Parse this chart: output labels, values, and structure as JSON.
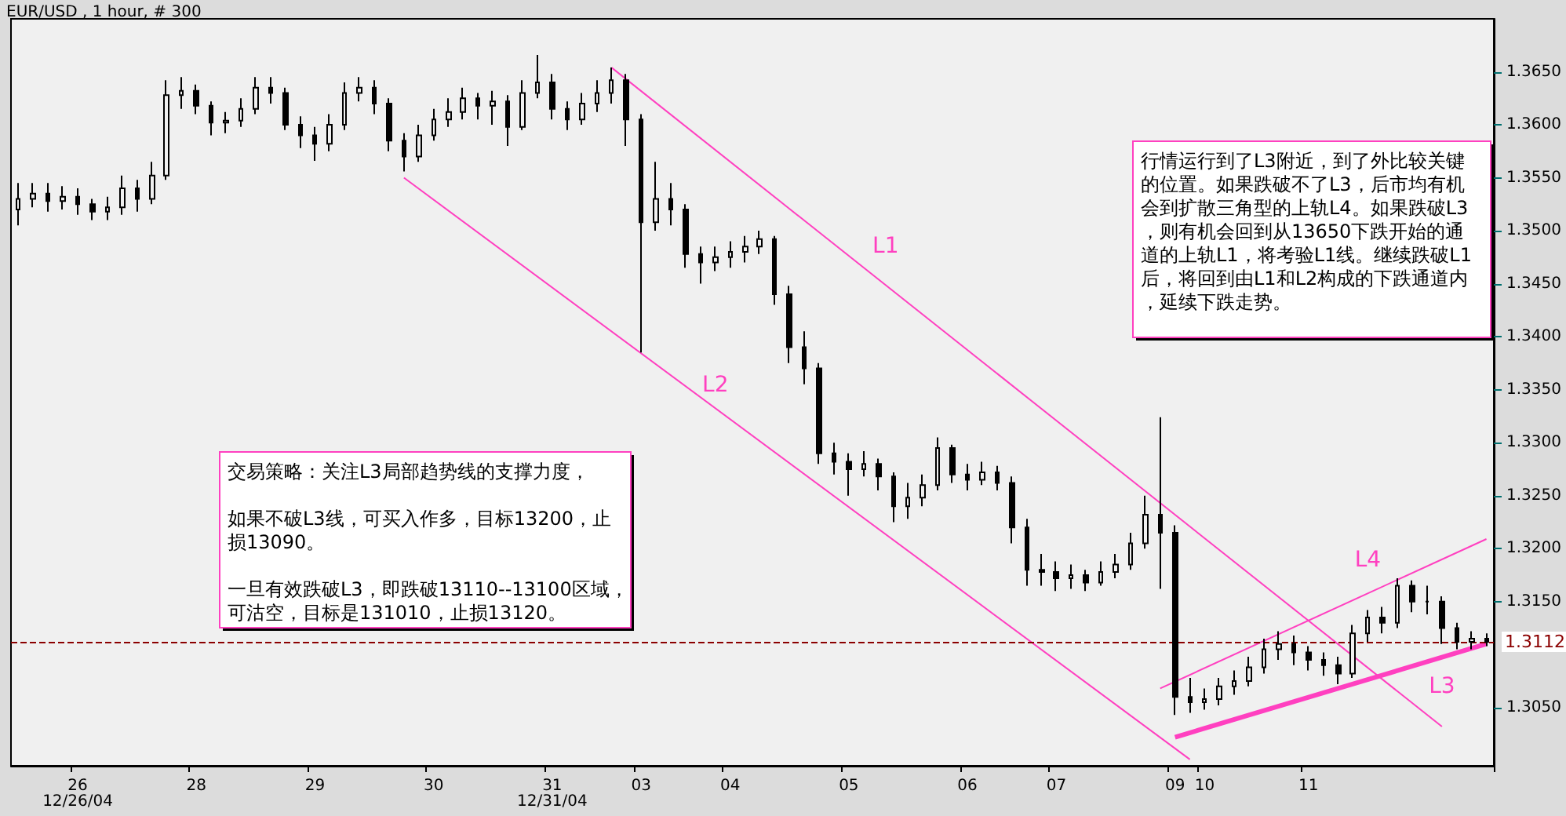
{
  "chart_data": {
    "type": "candlestick",
    "title": "EUR/USD , 1 hour, # 300",
    "categories": [
      null,
      null,
      null,
      null,
      "26\n12/26/04",
      null,
      null,
      null,
      null,
      null,
      null,
      null,
      "28",
      null,
      null,
      null,
      null,
      null,
      null,
      null,
      "29",
      null,
      null,
      null,
      null,
      null,
      null,
      null,
      "30",
      null,
      null,
      null,
      null,
      null,
      null,
      null,
      "31\n12/31/04",
      null,
      null,
      null,
      null,
      null,
      "03",
      null,
      null,
      null,
      null,
      null,
      "04",
      null,
      null,
      null,
      null,
      null,
      null,
      null,
      "05",
      null,
      null,
      null,
      null,
      null,
      null,
      null,
      "06",
      null,
      null,
      null,
      null,
      null,
      "07",
      null,
      null,
      null,
      null,
      null,
      null,
      null,
      "09",
      null,
      "10",
      null,
      null,
      null,
      null,
      null,
      null,
      "11",
      null,
      null,
      null,
      null,
      null,
      null,
      null,
      null,
      null,
      null,
      null,
      null
    ],
    "color": "#000000",
    "ohlc": [
      [
        1.352,
        1.3545,
        1.3505,
        1.353
      ],
      [
        1.353,
        1.3545,
        1.3522,
        1.3535
      ],
      [
        1.3535,
        1.3545,
        1.3518,
        1.3528
      ],
      [
        1.3528,
        1.3542,
        1.352,
        1.3532
      ],
      [
        1.3532,
        1.354,
        1.3515,
        1.3525
      ],
      [
        1.3525,
        1.353,
        1.351,
        1.3518
      ],
      [
        1.3518,
        1.3532,
        1.351,
        1.3522
      ],
      [
        1.3522,
        1.3552,
        1.3515,
        1.354
      ],
      [
        1.354,
        1.3548,
        1.3518,
        1.353
      ],
      [
        1.353,
        1.3565,
        1.3525,
        1.3552
      ],
      [
        1.3552,
        1.3642,
        1.3548,
        1.3628
      ],
      [
        1.3628,
        1.3645,
        1.3615,
        1.3632
      ],
      [
        1.3632,
        1.3638,
        1.361,
        1.3618
      ],
      [
        1.3618,
        1.3622,
        1.359,
        1.3602
      ],
      [
        1.3602,
        1.3612,
        1.3592,
        1.3604
      ],
      [
        1.3604,
        1.3625,
        1.3598,
        1.3615
      ],
      [
        1.3615,
        1.3645,
        1.361,
        1.3635
      ],
      [
        1.3635,
        1.3645,
        1.362,
        1.363
      ],
      [
        1.363,
        1.3635,
        1.3595,
        1.36
      ],
      [
        1.36,
        1.3608,
        1.3578,
        1.359
      ],
      [
        1.359,
        1.3598,
        1.3566,
        1.3582
      ],
      [
        1.3582,
        1.361,
        1.3575,
        1.36
      ],
      [
        1.36,
        1.364,
        1.3595,
        1.363
      ],
      [
        1.363,
        1.3645,
        1.3622,
        1.3635
      ],
      [
        1.3635,
        1.3642,
        1.361,
        1.362
      ],
      [
        1.362,
        1.3625,
        1.3575,
        1.3585
      ],
      [
        1.3585,
        1.3592,
        1.3556,
        1.357
      ],
      [
        1.357,
        1.36,
        1.3565,
        1.359
      ],
      [
        1.359,
        1.3615,
        1.3585,
        1.3605
      ],
      [
        1.3605,
        1.3625,
        1.3598,
        1.3612
      ],
      [
        1.3612,
        1.3635,
        1.3605,
        1.3625
      ],
      [
        1.3625,
        1.363,
        1.3605,
        1.3618
      ],
      [
        1.3618,
        1.3632,
        1.36,
        1.3622
      ],
      [
        1.3622,
        1.3628,
        1.358,
        1.3598
      ],
      [
        1.3598,
        1.3642,
        1.3595,
        1.363
      ],
      [
        1.363,
        1.3666,
        1.3625,
        1.364
      ],
      [
        1.364,
        1.3648,
        1.3605,
        1.3615
      ],
      [
        1.3615,
        1.3622,
        1.3595,
        1.3605
      ],
      [
        1.3605,
        1.363,
        1.36,
        1.362
      ],
      [
        1.362,
        1.3642,
        1.3612,
        1.363
      ],
      [
        1.363,
        1.3654,
        1.362,
        1.3642
      ],
      [
        1.3642,
        1.3648,
        1.358,
        1.3605
      ],
      [
        1.3605,
        1.361,
        1.3385,
        1.3508
      ],
      [
        1.3508,
        1.3565,
        1.35,
        1.353
      ],
      [
        1.353,
        1.3545,
        1.3505,
        1.352
      ],
      [
        1.352,
        1.3525,
        1.3465,
        1.3478
      ],
      [
        1.3478,
        1.3485,
        1.345,
        1.347
      ],
      [
        1.347,
        1.3485,
        1.3462,
        1.3475
      ],
      [
        1.3475,
        1.349,
        1.3465,
        1.348
      ],
      [
        1.348,
        1.3495,
        1.347,
        1.3485
      ],
      [
        1.3485,
        1.35,
        1.3478,
        1.3492
      ],
      [
        1.3492,
        1.3495,
        1.343,
        1.344
      ],
      [
        1.344,
        1.3448,
        1.3375,
        1.339
      ],
      [
        1.339,
        1.3405,
        1.3355,
        1.337
      ],
      [
        1.337,
        1.3375,
        1.328,
        1.329
      ],
      [
        1.329,
        1.33,
        1.327,
        1.3282
      ],
      [
        1.3282,
        1.329,
        1.325,
        1.3275
      ],
      [
        1.3275,
        1.3292,
        1.3268,
        1.328
      ],
      [
        1.328,
        1.3285,
        1.3255,
        1.3268
      ],
      [
        1.3268,
        1.3272,
        1.3225,
        1.324
      ],
      [
        1.324,
        1.3262,
        1.3228,
        1.3248
      ],
      [
        1.3248,
        1.327,
        1.324,
        1.326
      ],
      [
        1.326,
        1.3305,
        1.3255,
        1.3295
      ],
      [
        1.3295,
        1.3298,
        1.3262,
        1.327
      ],
      [
        1.327,
        1.328,
        1.3255,
        1.3265
      ],
      [
        1.3265,
        1.3282,
        1.326,
        1.3272
      ],
      [
        1.3272,
        1.3278,
        1.3255,
        1.3262
      ],
      [
        1.3262,
        1.3268,
        1.3205,
        1.322
      ],
      [
        1.322,
        1.3228,
        1.3165,
        1.318
      ],
      [
        1.318,
        1.3195,
        1.3165,
        1.3178
      ],
      [
        1.3178,
        1.3188,
        1.316,
        1.3172
      ],
      [
        1.3172,
        1.3185,
        1.3162,
        1.3175
      ],
      [
        1.3175,
        1.318,
        1.316,
        1.3168
      ],
      [
        1.3168,
        1.3188,
        1.3165,
        1.3178
      ],
      [
        1.3178,
        1.3195,
        1.3172,
        1.3185
      ],
      [
        1.3185,
        1.3215,
        1.318,
        1.3205
      ],
      [
        1.3205,
        1.325,
        1.32,
        1.3232
      ],
      [
        1.3232,
        1.3324,
        1.3162,
        1.3215
      ],
      [
        1.3215,
        1.3222,
        1.3043,
        1.306
      ],
      [
        1.306,
        1.3078,
        1.3045,
        1.3055
      ],
      [
        1.3055,
        1.3068,
        1.3048,
        1.3058
      ],
      [
        1.3058,
        1.3078,
        1.3052,
        1.307
      ],
      [
        1.307,
        1.3085,
        1.3062,
        1.3075
      ],
      [
        1.3075,
        1.3098,
        1.307,
        1.3088
      ],
      [
        1.3088,
        1.3115,
        1.3082,
        1.3105
      ],
      [
        1.3105,
        1.3122,
        1.3095,
        1.311
      ],
      [
        1.311,
        1.3118,
        1.309,
        1.3102
      ],
      [
        1.3102,
        1.3108,
        1.3085,
        1.3095
      ],
      [
        1.3095,
        1.3102,
        1.308,
        1.309
      ],
      [
        1.309,
        1.3098,
        1.3072,
        1.3082
      ],
      [
        1.3082,
        1.3128,
        1.3078,
        1.312
      ],
      [
        1.312,
        1.3142,
        1.3112,
        1.3135
      ],
      [
        1.3135,
        1.3145,
        1.312,
        1.313
      ],
      [
        1.313,
        1.3172,
        1.3125,
        1.3165
      ],
      [
        1.3165,
        1.317,
        1.314,
        1.315
      ],
      [
        1.315,
        1.3165,
        1.3138,
        1.315
      ],
      [
        1.315,
        1.3155,
        1.311,
        1.3125
      ],
      [
        1.3125,
        1.313,
        1.3105,
        1.3112
      ],
      [
        1.3112,
        1.3122,
        1.3105,
        1.3115
      ],
      [
        1.3115,
        1.312,
        1.3108,
        1.3112
      ]
    ],
    "series": [
      {
        "name": "L1",
        "type": "line",
        "color": "#ff40c0",
        "values": [
          null,
          null,
          null,
          null,
          null,
          null,
          null,
          null,
          null,
          null,
          null,
          null,
          null,
          null,
          null,
          null,
          null,
          null,
          null,
          null,
          null,
          null,
          null,
          null,
          null,
          null,
          null,
          null,
          null,
          null,
          null,
          null,
          null,
          null,
          null,
          null,
          null,
          null,
          null,
          null,
          1.3654,
          null,
          null,
          null,
          null,
          null,
          null,
          null,
          null,
          null,
          null,
          null,
          null,
          null,
          null,
          null,
          null,
          null,
          null,
          null,
          null,
          null,
          null,
          null,
          null,
          null,
          null,
          null,
          null,
          null,
          null,
          null,
          null,
          null,
          null,
          null,
          null,
          null,
          null,
          null,
          null,
          null,
          null,
          null,
          null,
          null,
          null,
          null,
          null,
          null,
          null,
          null,
          null,
          null,
          null,
          null,
          1.3032,
          null,
          null,
          null
        ]
      },
      {
        "name": "L2",
        "type": "line",
        "color": "#ff40c0",
        "values": [
          null,
          null,
          null,
          null,
          null,
          null,
          null,
          null,
          null,
          null,
          null,
          null,
          null,
          null,
          null,
          null,
          null,
          null,
          null,
          null,
          null,
          null,
          null,
          null,
          null,
          null,
          1.355,
          null,
          null,
          null,
          null,
          null,
          null,
          null,
          null,
          null,
          null,
          null,
          null,
          null,
          null,
          null,
          null,
          null,
          null,
          null,
          null,
          null,
          null,
          null,
          null,
          null,
          null,
          null,
          null,
          null,
          null,
          null,
          null,
          null,
          null,
          null,
          null,
          null,
          null,
          null,
          null,
          null,
          null,
          null,
          null,
          null,
          null,
          null,
          null,
          null,
          null,
          null,
          null,
          1.3001,
          null,
          null,
          null,
          null,
          null,
          null,
          null,
          null,
          null,
          null,
          null,
          null,
          null,
          null,
          null,
          null,
          null,
          null,
          null,
          null
        ]
      },
      {
        "name": "L3",
        "type": "line",
        "color": "#ff40c0",
        "values": [
          null,
          null,
          null,
          null,
          null,
          null,
          null,
          null,
          null,
          null,
          null,
          null,
          null,
          null,
          null,
          null,
          null,
          null,
          null,
          null,
          null,
          null,
          null,
          null,
          null,
          null,
          null,
          null,
          null,
          null,
          null,
          null,
          null,
          null,
          null,
          null,
          null,
          null,
          null,
          null,
          null,
          null,
          null,
          null,
          null,
          null,
          null,
          null,
          null,
          null,
          null,
          null,
          null,
          null,
          null,
          null,
          null,
          null,
          null,
          null,
          null,
          null,
          null,
          null,
          null,
          null,
          null,
          null,
          null,
          null,
          null,
          null,
          null,
          null,
          null,
          null,
          null,
          null,
          1.3022,
          null,
          null,
          null,
          null,
          null,
          null,
          null,
          null,
          null,
          null,
          null,
          null,
          null,
          null,
          null,
          null,
          null,
          null,
          null,
          null,
          1.311
        ]
      },
      {
        "name": "L4",
        "type": "line",
        "color": "#ff40c0",
        "values": [
          null,
          null,
          null,
          null,
          null,
          null,
          null,
          null,
          null,
          null,
          null,
          null,
          null,
          null,
          null,
          null,
          null,
          null,
          null,
          null,
          null,
          null,
          null,
          null,
          null,
          null,
          null,
          null,
          null,
          null,
          null,
          null,
          null,
          null,
          null,
          null,
          null,
          null,
          null,
          null,
          null,
          null,
          null,
          null,
          null,
          null,
          null,
          null,
          null,
          null,
          null,
          null,
          null,
          null,
          null,
          null,
          null,
          null,
          null,
          null,
          null,
          null,
          null,
          null,
          null,
          null,
          null,
          null,
          null,
          null,
          null,
          null,
          null,
          null,
          null,
          null,
          null,
          1.3068,
          null,
          null,
          null,
          null,
          null,
          null,
          null,
          null,
          null,
          null,
          null,
          null,
          null,
          null,
          null,
          null,
          null,
          null,
          null,
          null,
          null,
          1.3209
        ]
      }
    ],
    "ylim": [
      1.2995,
      1.37
    ],
    "yticks": [
      {
        "value": 1.305,
        "label": "1.3050"
      },
      {
        "value": 1.315,
        "label": "1.3150"
      },
      {
        "value": 1.32,
        "label": "1.3200"
      },
      {
        "value": 1.325,
        "label": "1.3250"
      },
      {
        "value": 1.33,
        "label": "1.3300"
      },
      {
        "value": 1.335,
        "label": "1.3350"
      },
      {
        "value": 1.34,
        "label": "1.3400"
      },
      {
        "value": 1.345,
        "label": "1.3450"
      },
      {
        "value": 1.35,
        "label": "1.3500"
      },
      {
        "value": 1.355,
        "label": "1.3550"
      },
      {
        "value": 1.36,
        "label": "1.3600"
      },
      {
        "value": 1.365,
        "label": "1.3650"
      }
    ],
    "ref_lines": [
      {
        "axis": "y",
        "value": 1.3112,
        "label": "1.3112",
        "color": "#8b0000",
        "line_style": "dashed"
      }
    ],
    "annotations": [
      "行情运行到了L3附近，到了外比较关键的位置。如果跌破不了L3，后市均有机会到扩散三角型的上轨L4。如果跌破L3，则有机会回到从13650下跌开始的通道的上轨L1，将考验L1线。继续跌破L1后，将回到由L1和L2构成的下跌通道内，延续下跌走势。",
      "交易策略：关注L3局部趋势线的支撑力度，",
      "如果不破L3线，可买入作多，目标13200，止损13090。",
      "一旦有效跌破L3，即跌破13110--13100区域，可沽空，目标是131010，止损13120。"
    ]
  }
}
